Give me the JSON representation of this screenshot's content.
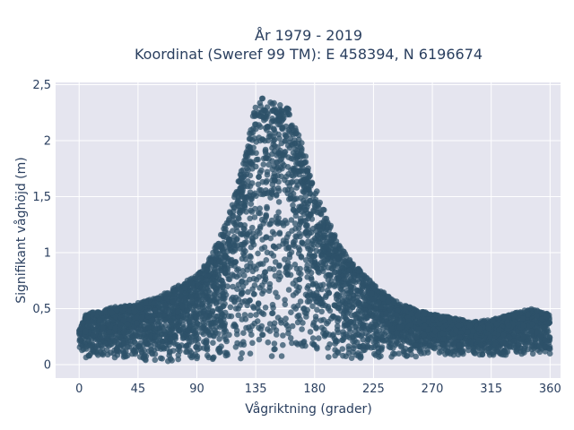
{
  "chart_data": {
    "type": "scatter",
    "title_lines": [
      "År 1979 - 2019",
      "Koordinat (Sweref 99 TM): E 458394, N 6196674"
    ],
    "xlabel": "Vågriktning (grader)",
    "ylabel": "Signifikant våghöjd (m)",
    "xlim": [
      -18,
      368
    ],
    "ylim": [
      -0.12,
      2.52
    ],
    "x_ticks": [
      0,
      45,
      90,
      135,
      180,
      225,
      270,
      315,
      360
    ],
    "x_tick_labels": [
      "0",
      "45",
      "90",
      "135",
      "180",
      "225",
      "270",
      "315",
      "360"
    ],
    "y_ticks": [
      0,
      0.5,
      1,
      1.5,
      2,
      2.5
    ],
    "y_tick_labels": [
      "0",
      "0,5",
      "1",
      "1,5",
      "2",
      "2,5"
    ],
    "grid": true,
    "marker_color": "#2d5269",
    "background_color": "#e5e5ef",
    "series": [
      {
        "x_range": [
          0,
          360
        ],
        "envelope": {
          "direction": [
            0,
            5,
            20,
            45,
            60,
            75,
            90,
            100,
            110,
            120,
            130,
            135,
            140,
            150,
            160,
            170,
            180,
            190,
            200,
            210,
            225,
            240,
            255,
            270,
            285,
            300,
            315,
            330,
            345,
            360
          ],
          "upper_wave_height": [
            0.3,
            0.45,
            0.5,
            0.55,
            0.6,
            0.7,
            0.8,
            0.95,
            1.2,
            1.55,
            2.05,
            2.35,
            2.4,
            2.35,
            2.3,
            2.0,
            1.6,
            1.3,
            1.05,
            0.9,
            0.72,
            0.58,
            0.5,
            0.45,
            0.42,
            0.38,
            0.4,
            0.45,
            0.5,
            0.45
          ],
          "lower_wave_height": [
            0.08,
            0.06,
            0.05,
            0.03,
            0.02,
            0.02,
            0.03,
            0.03,
            0.04,
            0.05,
            0.06,
            0.07,
            0.07,
            0.06,
            0.06,
            0.05,
            0.05,
            0.05,
            0.05,
            0.05,
            0.06,
            0.07,
            0.07,
            0.08,
            0.08,
            0.08,
            0.08,
            0.08,
            0.08,
            0.08
          ]
        }
      }
    ]
  }
}
